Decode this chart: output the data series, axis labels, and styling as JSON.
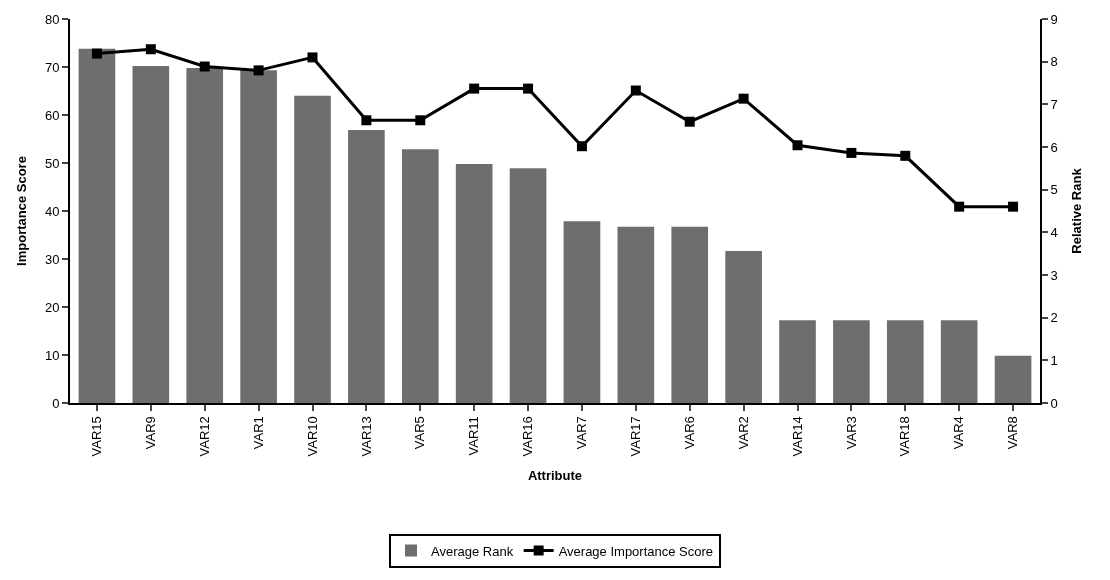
{
  "chart_data": {
    "type": "bar",
    "xlabel": "Attribute",
    "ylabel": "Importance Score",
    "y2label": "Relative Rank",
    "categories": [
      "VAR15",
      "VAR9",
      "VAR12",
      "VAR1",
      "VAR10",
      "VAR13",
      "VAR5",
      "VAR11",
      "VAR16",
      "VAR7",
      "VAR17",
      "VAR6",
      "VAR2",
      "VAR14",
      "VAR3",
      "VAR18",
      "VAR4",
      "VAR8"
    ],
    "series": [
      {
        "name": "Average Rank",
        "axis": "y2",
        "color": "#6e6e6e",
        "values": [
          8.3,
          7.9,
          7.85,
          7.8,
          7.2,
          6.4,
          5.95,
          5.6,
          5.5,
          4.26,
          4.13,
          4.13,
          3.56,
          1.94,
          1.94,
          1.94,
          1.94,
          1.11
        ]
      },
      {
        "name": "Average Importance Score",
        "type": "line",
        "axis": "y",
        "color": "#000000",
        "marker": "square",
        "values": [
          72.8,
          73.7,
          70.1,
          69.3,
          72.0,
          58.9,
          58.9,
          65.5,
          65.5,
          53.5,
          65.1,
          58.6,
          63.4,
          53.7,
          52.1,
          51.5,
          40.9,
          40.9
        ]
      }
    ],
    "ylim": [
      0,
      80
    ],
    "yticks": [
      0,
      10,
      20,
      30,
      40,
      50,
      60,
      70,
      80
    ],
    "y2lim": [
      0,
      9
    ],
    "y2ticks": [
      0,
      1,
      2,
      3,
      4,
      5,
      6,
      7,
      8,
      9
    ],
    "grid": false,
    "legend": "bottom"
  }
}
